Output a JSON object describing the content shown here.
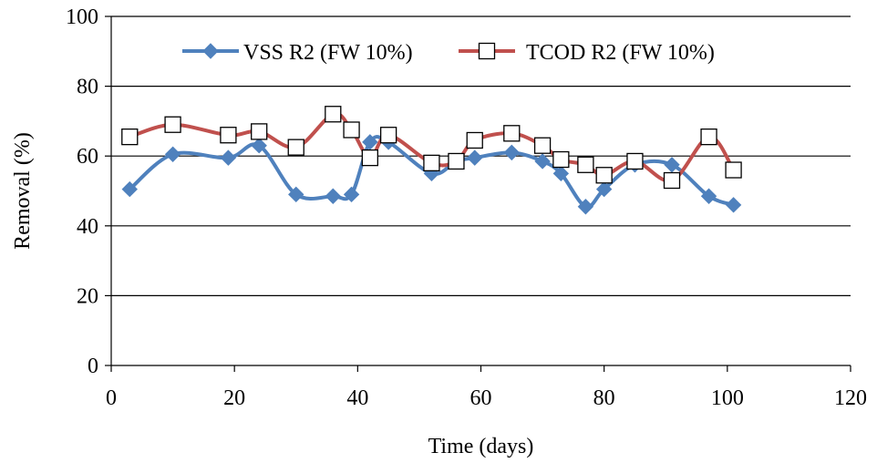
{
  "chart_data": {
    "type": "line",
    "xlabel": "Time (days)",
    "ylabel": "Removal (%)",
    "xlim": [
      0,
      120
    ],
    "ylim": [
      0,
      100
    ],
    "x_ticks": [
      "0",
      "20",
      "40",
      "60",
      "80",
      "100",
      "120"
    ],
    "y_ticks": [
      "0",
      "20",
      "40",
      "60",
      "80",
      "100"
    ],
    "grid": "horizontal major gridlines",
    "legend_position": "top",
    "series": [
      {
        "name": "VSS R2 (FW 10%)",
        "color": "#4f81bd",
        "marker": "diamond",
        "x": [
          3,
          10,
          19,
          24,
          30,
          36,
          39,
          42,
          45,
          52,
          56,
          59,
          65,
          70,
          73,
          77,
          80,
          85,
          91,
          97,
          101
        ],
        "y": [
          50.5,
          60.5,
          59.5,
          63,
          49,
          48.5,
          49,
          64,
          64,
          55,
          58.5,
          59.5,
          61,
          58.5,
          55,
          45.5,
          50.5,
          57.5,
          57.5,
          48.5,
          46
        ]
      },
      {
        "name": "TCOD R2 (FW 10%)",
        "color": "#c0504d",
        "marker": "open-square",
        "x": [
          3,
          10,
          19,
          24,
          30,
          36,
          39,
          42,
          45,
          52,
          56,
          59,
          65,
          70,
          73,
          77,
          80,
          85,
          91,
          97,
          101
        ],
        "y": [
          65.5,
          69,
          66,
          67,
          62.5,
          72,
          67.5,
          59.5,
          66,
          58,
          58.5,
          64.5,
          66.5,
          63,
          59,
          57.5,
          54.5,
          58.5,
          53,
          65.5,
          56
        ]
      }
    ]
  }
}
